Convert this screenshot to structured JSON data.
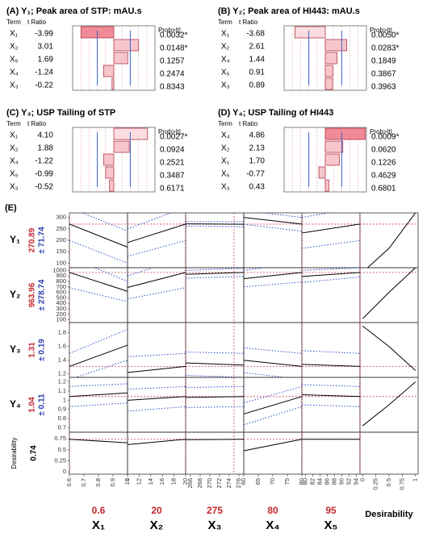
{
  "chart_data": [
    {
      "type": "pareto",
      "title": "(A) Y₁; Peak area of STP: mAU.s",
      "term_header": "Term",
      "t_header": "t Ratio",
      "prob_header": "Prob>|t|",
      "categories": [
        "X₁",
        "X₂",
        "X₅",
        "X₄",
        "X₃"
      ],
      "values": [
        -3.99,
        3.01,
        1.69,
        -1.24,
        -0.22
      ],
      "value_labels": [
        "-3.99",
        "3.01",
        "1.69",
        "-1.24",
        "-0.22"
      ],
      "prob": [
        "0.0032*",
        "0.0148*",
        "0.1257",
        "0.2474",
        "0.8343"
      ],
      "colors": [
        "#f08a97",
        "#f7c6cc",
        "#f7c6cc",
        "#f7c6cc",
        "#f7c6cc"
      ],
      "xlim": [
        -5,
        5
      ]
    },
    {
      "type": "pareto",
      "title": "(B) Y₂; Peak area of HI443: mAU.s",
      "term_header": "Term",
      "t_header": "t Ratio",
      "prob_header": "Prob>|t|",
      "categories": [
        "X₁",
        "X₂",
        "X₄",
        "X₅",
        "X₃"
      ],
      "values": [
        -3.68,
        2.61,
        1.44,
        0.91,
        0.89
      ],
      "value_labels": [
        "-3.68",
        "2.61",
        "1.44",
        "0.91",
        "0.89"
      ],
      "prob": [
        "0.0050*",
        "0.0283*",
        "0.1849",
        "0.3867",
        "0.3963"
      ],
      "colors": [
        "#fbdde1",
        "#f7c6cc",
        "#f7c6cc",
        "#f7c6cc",
        "#f7c6cc"
      ],
      "xlim": [
        -5,
        5
      ]
    },
    {
      "type": "pareto",
      "title": "(C) Y₃; USP Tailing of STP",
      "term_header": "Term",
      "t_header": "t Ratio",
      "prob_header": "Prob>|t|",
      "categories": [
        "X₁",
        "X₂",
        "X₄",
        "X₅",
        "X₃"
      ],
      "values": [
        4.1,
        1.88,
        -1.22,
        -0.99,
        -0.52
      ],
      "value_labels": [
        "4.10",
        "1.88",
        "-1.22",
        "-0.99",
        "-0.52"
      ],
      "prob": [
        "0.0027*",
        "0.0924",
        "0.2521",
        "0.3487",
        "0.6171"
      ],
      "colors": [
        "#fbdde1",
        "#f7c6cc",
        "#f7c6cc",
        "#f7c6cc",
        "#f7c6cc"
      ],
      "xlim": [
        -5,
        5
      ]
    },
    {
      "type": "pareto",
      "title": "(D) Y₄; USP Tailing of HI443",
      "term_header": "Term",
      "t_header": "t Ratio",
      "prob_header": "Prob>|t|",
      "categories": [
        "X₄",
        "X₂",
        "X₁",
        "X₅",
        "X₃"
      ],
      "values": [
        4.86,
        2.13,
        1.7,
        -0.77,
        0.43
      ],
      "value_labels": [
        "4.86",
        "2.13",
        "1.70",
        "-0.77",
        "0.43"
      ],
      "prob": [
        "0.0009*",
        "0.0620",
        "0.1226",
        "0.4629",
        "0.6801"
      ],
      "colors": [
        "#f08a97",
        "#f7c6cc",
        "#f7c6cc",
        "#f7c6cc",
        "#f7c6cc"
      ],
      "xlim": [
        -5,
        5
      ]
    },
    {
      "type": "profiler",
      "panel_label": "(E)",
      "columns": [
        {
          "name": "X₁",
          "xlim": [
            0.6,
            1
          ],
          "xticks": [
            0.6,
            0.7,
            0.8,
            0.9,
            1
          ],
          "current": 0.6
        },
        {
          "name": "X₂",
          "xlim": [
            10,
            20
          ],
          "xticks": [
            10,
            12,
            14,
            16,
            18,
            20
          ],
          "current": 20
        },
        {
          "name": "X₃",
          "xlim": [
            265,
            277
          ],
          "xticks": [
            266,
            268,
            270,
            272,
            274,
            276
          ],
          "current": 275
        },
        {
          "name": "X₄",
          "xlim": [
            60,
            80
          ],
          "xticks": [
            60,
            65,
            70,
            75,
            80
          ],
          "current": 80
        },
        {
          "name": "X₅",
          "xlim": [
            79,
            95
          ],
          "xticks": [
            80,
            82,
            84,
            86,
            88,
            90,
            92,
            94
          ],
          "current": 95
        }
      ],
      "desirability_column": {
        "name": "Desirability",
        "xlim": [
          -0.05,
          1.05
        ],
        "xticks": [
          0,
          0.25,
          0.5,
          0.75,
          1
        ]
      },
      "rows": [
        {
          "name": "Y₁",
          "value": 270.89,
          "ci": {
            "value": 71.74,
            "label": "± 71.74"
          },
          "ylim": [
            80,
            320
          ],
          "yticks": [
            100,
            150,
            200,
            250,
            300
          ],
          "pred": [
            [
              271,
              170
            ],
            [
              190,
              271
            ],
            [
              272,
              270
            ],
            [
              300,
              271
            ],
            [
              232,
              271
            ]
          ],
          "upper": [
            [
              343,
              240
            ],
            [
              250,
              343
            ],
            [
              282,
              281
            ],
            [
              330,
              300
            ],
            [
              300,
              343
            ]
          ],
          "lower": [
            [
              199,
              100
            ],
            [
              130,
              199
            ],
            [
              262,
              259
            ],
            [
              270,
              240
            ],
            [
              165,
              199
            ]
          ],
          "desirability_x": [
            0,
            0.5,
            1
          ],
          "desirability_y": [
            60,
            165,
            320
          ]
        },
        {
          "name": "Y₂",
          "value": 963.96,
          "ci": {
            "value": 278.74,
            "label": "± 278.74"
          },
          "ylim": [
            50,
            1050
          ],
          "yticks": [
            100,
            200,
            300,
            400,
            500,
            600,
            700,
            800,
            900,
            1000
          ],
          "pred": [
            [
              964,
              620
            ],
            [
              690,
              964
            ],
            [
              930,
              964
            ],
            [
              850,
              964
            ],
            [
              890,
              964
            ]
          ],
          "upper": [
            [
              1242,
              800
            ],
            [
              900,
              1242
            ],
            [
              1000,
              1040
            ],
            [
              1000,
              1150
            ],
            [
              1000,
              1050
            ]
          ],
          "lower": [
            [
              686,
              430
            ],
            [
              480,
              686
            ],
            [
              860,
              890
            ],
            [
              700,
              790
            ],
            [
              780,
              880
            ]
          ],
          "desirability_x": [
            0,
            0.5,
            1
          ],
          "desirability_y": [
            120,
            600,
            1050
          ]
        },
        {
          "name": "Y₃",
          "value": 1.31,
          "ci": {
            "value": 0.19,
            "label": "± 0.19"
          },
          "ylim": [
            1.15,
            1.95
          ],
          "yticks": [
            1.2,
            1.4,
            1.6,
            1.8
          ],
          "pred": [
            [
              1.31,
              1.62
            ],
            [
              1.22,
              1.31
            ],
            [
              1.36,
              1.33
            ],
            [
              1.4,
              1.31
            ],
            [
              1.34,
              1.31
            ]
          ],
          "upper": [
            [
              1.5,
              1.85
            ],
            [
              1.45,
              1.5
            ],
            [
              1.52,
              1.5
            ],
            [
              1.58,
              1.5
            ],
            [
              1.54,
              1.5
            ]
          ],
          "lower": [
            [
              1.12,
              1.4
            ],
            [
              1.0,
              1.12
            ],
            [
              1.18,
              1.15
            ],
            [
              1.22,
              1.12
            ],
            [
              1.15,
              1.12
            ]
          ],
          "desirability_x": [
            0,
            0.5,
            1
          ],
          "desirability_y": [
            1.9,
            1.6,
            1.25
          ]
        },
        {
          "name": "Y₄",
          "value": 1.04,
          "ci": {
            "value": 0.11,
            "label": "± 0.11"
          },
          "ylim": [
            0.65,
            1.25
          ],
          "yticks": [
            0.7,
            0.8,
            0.9,
            1,
            1.1,
            1.2
          ],
          "pred": [
            [
              1.04,
              1.08
            ],
            [
              1.0,
              1.04
            ],
            [
              1.03,
              1.04
            ],
            [
              0.85,
              1.04
            ],
            [
              1.06,
              1.04
            ]
          ],
          "upper": [
            [
              1.15,
              1.18
            ],
            [
              1.12,
              1.15
            ],
            [
              1.14,
              1.15
            ],
            [
              0.97,
              1.15
            ],
            [
              1.17,
              1.15
            ]
          ],
          "lower": [
            [
              0.93,
              0.97
            ],
            [
              0.88,
              0.93
            ],
            [
              0.92,
              0.93
            ],
            [
              0.73,
              0.93
            ],
            [
              0.95,
              0.93
            ]
          ],
          "desirability_x": [
            0,
            0.5,
            1
          ],
          "desirability_y": [
            0.72,
            0.95,
            1.2
          ]
        },
        {
          "name": "Desirability",
          "value": 0.74,
          "ylim": [
            -0.05,
            0.9
          ],
          "yticks": [
            0,
            0.25,
            0.5,
            0.75
          ],
          "pred": [
            [
              0.74,
              0.66
            ],
            [
              0.62,
              0.74
            ],
            [
              0.73,
              0.74
            ],
            [
              0.48,
              0.74
            ],
            [
              0.74,
              0.74
            ]
          ]
        }
      ]
    }
  ]
}
